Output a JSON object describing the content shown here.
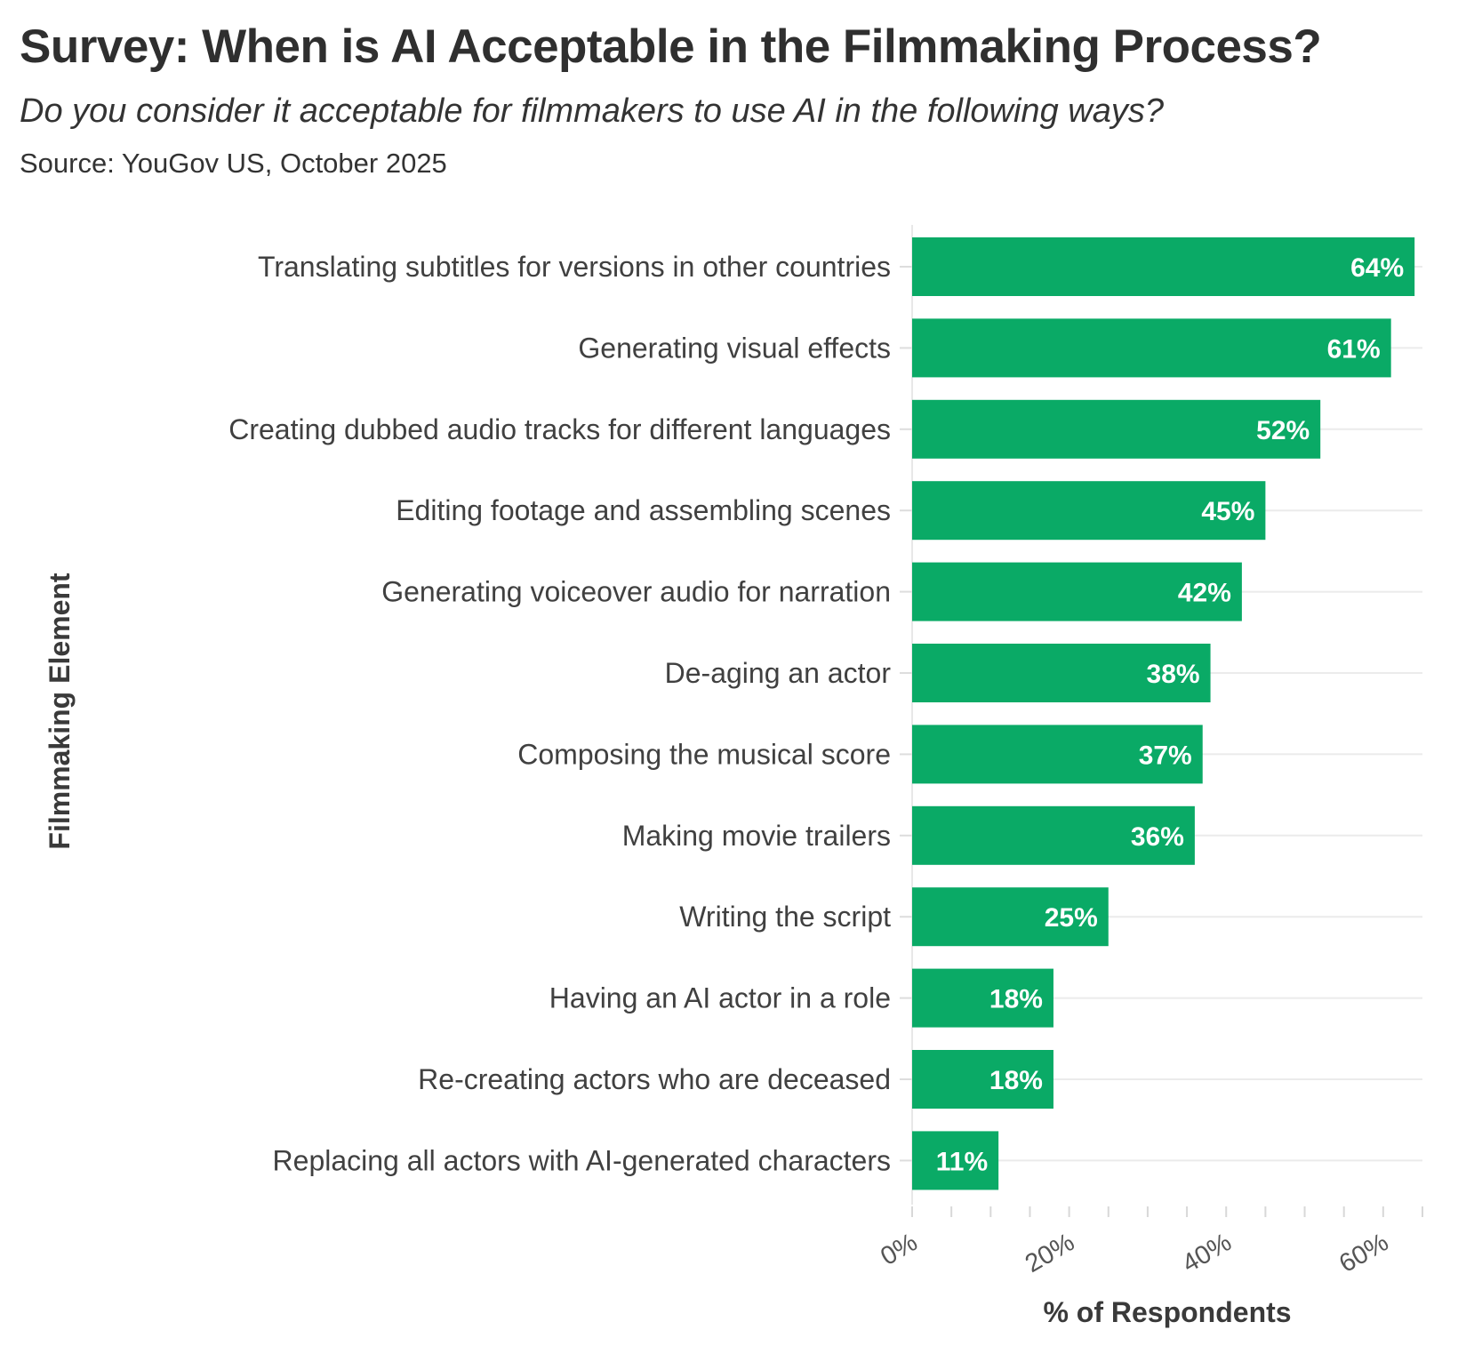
{
  "chart_data": {
    "type": "bar",
    "orientation": "horizontal",
    "title": "Survey: When is AI Acceptable in the Filmmaking Process?",
    "subtitle": "Do you consider it acceptable for filmmakers to use AI in the following ways?",
    "source": "Source: YouGov US, October 2025",
    "xlabel": "% of Respondents",
    "ylabel": "Filmmaking Element",
    "xlim": [
      0,
      65
    ],
    "xticks": [
      0,
      20,
      40,
      60
    ],
    "xtick_labels": [
      "0%",
      "20%",
      "40%",
      "60%"
    ],
    "grid": "horizontal",
    "categories": [
      "Translating subtitles for versions in other countries",
      "Generating visual effects",
      "Creating dubbed audio tracks for different languages",
      "Editing footage and assembling scenes",
      "Generating voiceover audio for narration",
      "De-aging an actor",
      "Composing the musical score",
      "Making movie trailers",
      "Writing the script",
      "Having an AI actor in a role",
      "Re-creating actors who are deceased",
      "Replacing all actors with AI-generated characters"
    ],
    "values": [
      64,
      61,
      52,
      45,
      42,
      38,
      37,
      36,
      25,
      18,
      18,
      11
    ],
    "value_labels": [
      "64%",
      "61%",
      "52%",
      "45%",
      "42%",
      "38%",
      "37%",
      "36%",
      "25%",
      "18%",
      "18%",
      "11%"
    ],
    "bar_color": "#0aaa66"
  }
}
